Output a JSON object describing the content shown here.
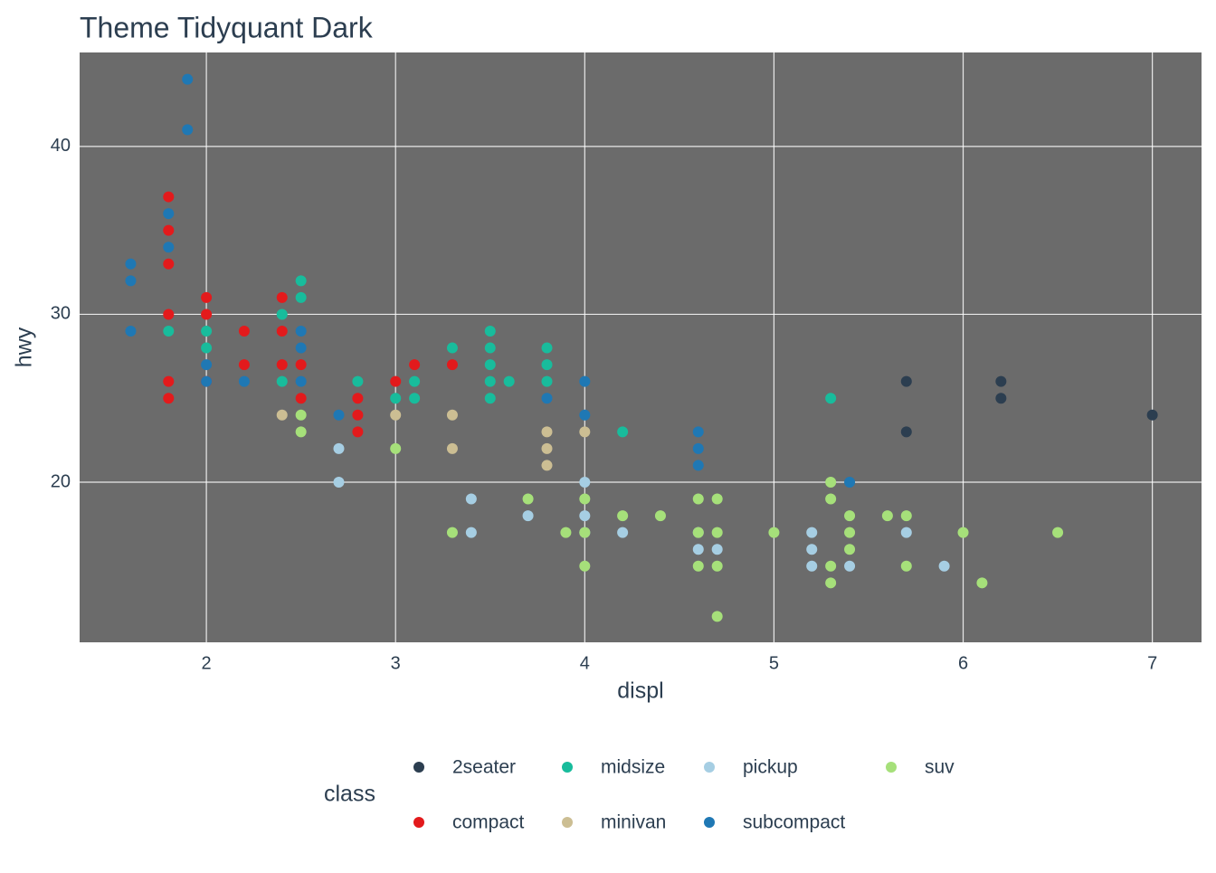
{
  "chart_data": {
    "type": "scatter",
    "title": "Theme Tidyquant Dark",
    "x_label": "displ",
    "y_label": "hwy",
    "xlim": [
      1.33,
      7.26
    ],
    "ylim": [
      10.46,
      45.6
    ],
    "xticks": [
      2,
      3,
      4,
      5,
      6,
      7
    ],
    "yticks": [
      20,
      30,
      40
    ],
    "grid": true,
    "panel_color": "#6b6b6b",
    "legend_title": "class",
    "legend_position": "bottom",
    "series": [
      {
        "name": "2seater",
        "color": "#2c3e50",
        "x": [
          5.7,
          5.7,
          6.2,
          6.2,
          7.0
        ],
        "values": [
          26,
          23,
          26,
          25,
          24
        ]
      },
      {
        "name": "compact",
        "color": "#e31a1c",
        "x": [
          1.8,
          1.8,
          1.8,
          1.8,
          1.8,
          1.8,
          2.0,
          2.0,
          2.0,
          2.2,
          2.2,
          2.4,
          2.4,
          2.4,
          2.5,
          2.5,
          2.8,
          2.8,
          2.8,
          3.0,
          3.1,
          3.3
        ],
        "values": [
          37,
          35,
          33,
          30,
          26,
          25,
          31,
          30,
          26,
          29,
          27,
          31,
          29,
          27,
          27,
          25,
          25,
          24,
          23,
          26,
          27,
          27
        ]
      },
      {
        "name": "midsize",
        "color": "#18bc9c",
        "x": [
          1.8,
          2.0,
          2.0,
          2.4,
          2.4,
          2.5,
          2.5,
          2.8,
          3.0,
          3.1,
          3.1,
          3.3,
          3.5,
          3.5,
          3.5,
          3.5,
          3.5,
          3.6,
          3.8,
          3.8,
          3.8,
          4.2,
          5.3
        ],
        "values": [
          29,
          29,
          28,
          30,
          26,
          32,
          31,
          26,
          25,
          26,
          25,
          28,
          29,
          28,
          27,
          26,
          25,
          26,
          28,
          27,
          26,
          23,
          25
        ]
      },
      {
        "name": "minivan",
        "color": "#ccbe93",
        "x": [
          2.4,
          3.0,
          3.3,
          3.3,
          3.8,
          3.8,
          3.8,
          4.0
        ],
        "values": [
          24,
          24,
          24,
          22,
          23,
          22,
          21,
          23
        ]
      },
      {
        "name": "pickup",
        "color": "#a6cee3",
        "x": [
          2.7,
          2.7,
          3.4,
          3.4,
          3.7,
          4.0,
          4.0,
          4.0,
          4.2,
          4.6,
          4.6,
          4.7,
          5.2,
          5.2,
          5.2,
          5.4,
          5.7,
          5.9
        ],
        "values": [
          22,
          20,
          19,
          17,
          18,
          20,
          18,
          17,
          17,
          17,
          16,
          16,
          17,
          16,
          15,
          15,
          17,
          15
        ]
      },
      {
        "name": "subcompact",
        "color": "#1f78b4",
        "x": [
          1.6,
          1.6,
          1.6,
          1.8,
          1.8,
          1.9,
          1.9,
          2.0,
          2.0,
          2.2,
          2.5,
          2.5,
          2.5,
          2.7,
          3.8,
          4.0,
          4.0,
          4.6,
          4.6,
          4.6,
          5.4
        ],
        "values": [
          33,
          32,
          29,
          36,
          34,
          44,
          41,
          27,
          26,
          26,
          29,
          28,
          26,
          24,
          25,
          26,
          24,
          23,
          22,
          21,
          20
        ]
      },
      {
        "name": "suv",
        "color": "#a6e07a",
        "x": [
          2.5,
          2.5,
          3.0,
          3.3,
          3.7,
          3.9,
          4.0,
          4.0,
          4.0,
          4.2,
          4.4,
          4.6,
          4.6,
          4.6,
          4.7,
          4.7,
          4.7,
          4.7,
          5.0,
          5.3,
          5.3,
          5.3,
          5.3,
          5.4,
          5.4,
          5.4,
          5.6,
          5.7,
          5.7,
          6.0,
          6.1,
          6.5
        ],
        "values": [
          24,
          23,
          22,
          17,
          19,
          17,
          19,
          17,
          15,
          18,
          18,
          19,
          17,
          15,
          19,
          17,
          15,
          12,
          17,
          20,
          19,
          15,
          14,
          18,
          17,
          16,
          18,
          18,
          15,
          17,
          14,
          17
        ]
      }
    ]
  }
}
